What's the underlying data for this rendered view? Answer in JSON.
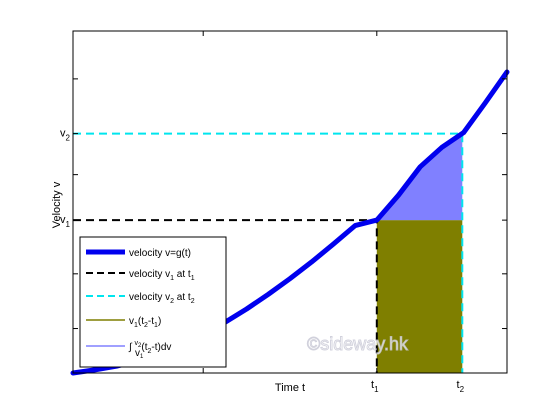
{
  "chart_data": {
    "type": "line",
    "xlabel": "Time t",
    "ylabel": "Velocity v",
    "xlim": [
      0,
      1
    ],
    "ylim": [
      0,
      1
    ],
    "x_tick_labels": [
      {
        "base": "t",
        "sub": "1",
        "value": 0.7
      },
      {
        "base": "t",
        "sub": "2",
        "value": 0.897
      }
    ],
    "y_tick_labels": [
      {
        "base": "v",
        "sub": "2",
        "value": 0.7
      },
      {
        "base": "v",
        "sub": "1",
        "value": 0.447
      }
    ],
    "curve": {
      "x": [
        0,
        0.05,
        0.1,
        0.15,
        0.2,
        0.25,
        0.3,
        0.35,
        0.4,
        0.45,
        0.5,
        0.55,
        0.6,
        0.65,
        0.7,
        0.75,
        0.8,
        0.85,
        0.9,
        0.95,
        1.0
      ],
      "y": [
        0.0,
        0.009,
        0.02,
        0.036,
        0.057,
        0.083,
        0.113,
        0.148,
        0.187,
        0.23,
        0.276,
        0.325,
        0.377,
        0.431,
        0.447,
        0.52,
        0.603,
        0.66,
        0.703,
        0.79,
        0.88
      ]
    },
    "t1": 0.7,
    "t2": 0.897,
    "v1": 0.447,
    "v2": 0.7,
    "legend": {
      "placement": "bottom-left",
      "entries": [
        {
          "label": "velocity v=g(t)",
          "style": "thick-blue"
        },
        {
          "label": "velocity v at t",
          "sub_v": "1",
          "sub_t": "1",
          "style": "dashed-black"
        },
        {
          "label": "velocity v at t",
          "sub_v": "2",
          "sub_t": "2",
          "style": "dashed-cyan"
        },
        {
          "label": "v(t-t)",
          "style": "olive"
        },
        {
          "label": "∫ (t-t)dv",
          "style": "lightblue"
        }
      ]
    },
    "colors": {
      "curve": "#0000ee",
      "dash_black": "#000000",
      "dash_cyan": "#00e5ee",
      "rect_fill": "#7f7f00",
      "area_fill": "#8080ff"
    },
    "grid": false
  },
  "watermark": "©sideway.hk"
}
